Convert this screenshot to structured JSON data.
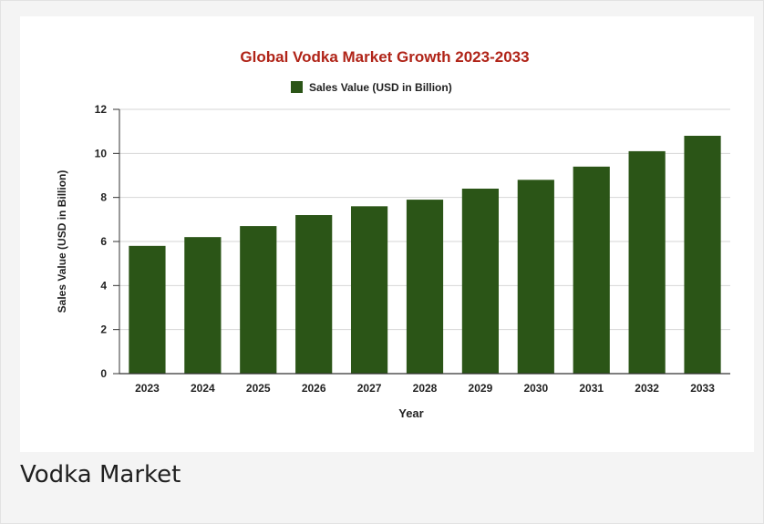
{
  "caption": "Vodka Market",
  "colors": {
    "title": "#b02418",
    "bar": "#2b5517",
    "grid": "#d6d6d6",
    "axis": "#333333"
  },
  "chart_data": {
    "type": "bar",
    "title": "Global Vodka Market Growth 2023-2033",
    "xlabel": "Year",
    "ylabel": "Sales Value (USD in Billion)",
    "legend": {
      "position": "top",
      "entries": [
        "Sales Value (USD in Billion)"
      ]
    },
    "ylim": [
      0,
      12
    ],
    "yticks": [
      0,
      2,
      4,
      6,
      8,
      10,
      12
    ],
    "grid": true,
    "categories": [
      "2023",
      "2024",
      "2025",
      "2026",
      "2027",
      "2028",
      "2029",
      "2030",
      "2031",
      "2032",
      "2033"
    ],
    "series": [
      {
        "name": "Sales Value (USD in Billion)",
        "values": [
          5.8,
          6.2,
          6.7,
          7.2,
          7.6,
          7.9,
          8.4,
          8.8,
          9.4,
          10.1,
          10.8
        ]
      }
    ]
  }
}
